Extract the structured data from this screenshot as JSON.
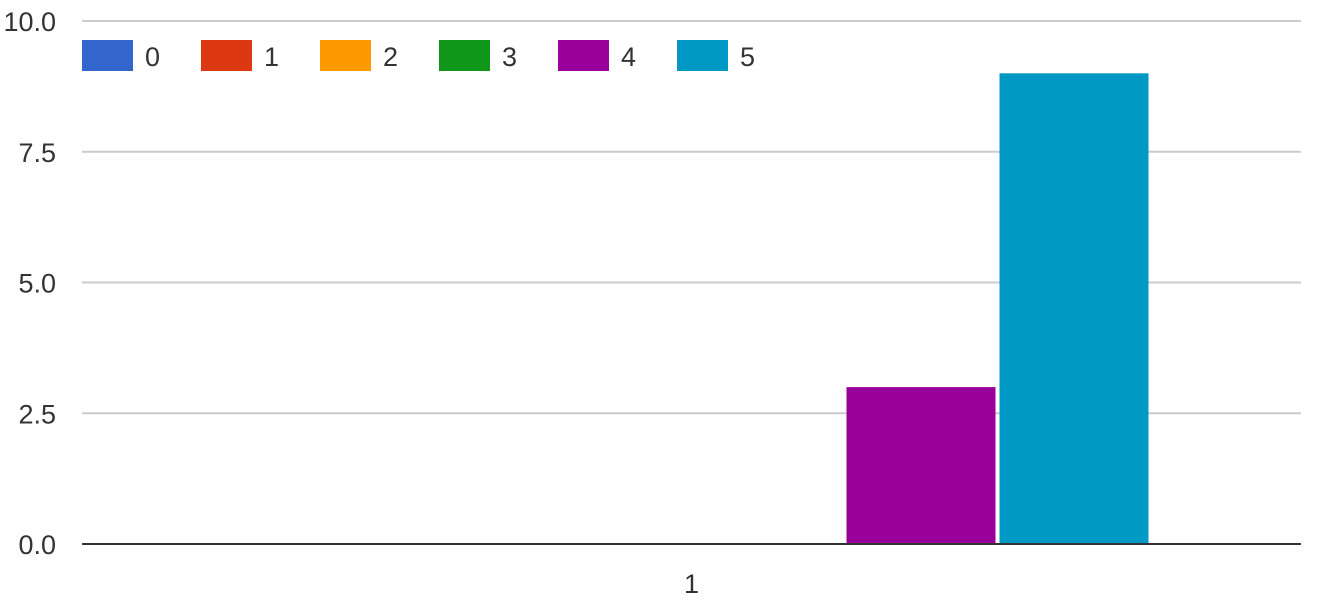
{
  "chart_data": {
    "type": "bar",
    "categories": [
      "1"
    ],
    "series": [
      {
        "name": "0",
        "color": "#3366cc",
        "values": [
          0
        ]
      },
      {
        "name": "1",
        "color": "#dc3912",
        "values": [
          0
        ]
      },
      {
        "name": "2",
        "color": "#ff9900",
        "values": [
          0
        ]
      },
      {
        "name": "3",
        "color": "#109618",
        "values": [
          0
        ]
      },
      {
        "name": "4",
        "color": "#990099",
        "values": [
          3
        ]
      },
      {
        "name": "5",
        "color": "#0099c6",
        "values": [
          9
        ]
      }
    ],
    "ylim": [
      0,
      10
    ],
    "yticks": [
      "0.0",
      "2.5",
      "5.0",
      "7.5",
      "10.0"
    ],
    "ytick_values": [
      0,
      2.5,
      5,
      7.5,
      10
    ],
    "grid": true,
    "legend_position": "top-left",
    "title": "",
    "xlabel": "",
    "ylabel": ""
  }
}
